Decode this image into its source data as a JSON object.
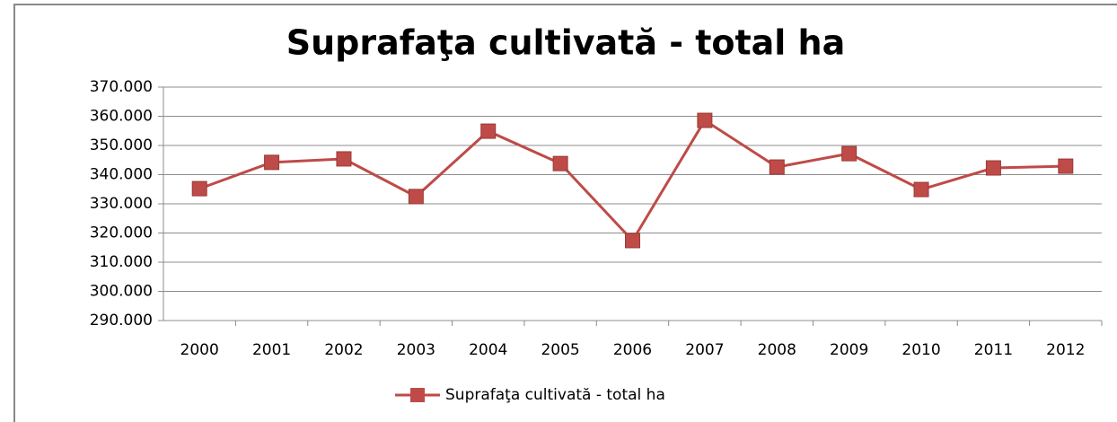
{
  "chart_data": {
    "type": "line",
    "title": "Suprafaţa cultivată - total ha",
    "categories": [
      "2000",
      "2001",
      "2002",
      "2003",
      "2004",
      "2005",
      "2006",
      "2007",
      "2008",
      "2009",
      "2010",
      "2011",
      "2012"
    ],
    "series": [
      {
        "name": "Suprafaţa cultivată - total ha",
        "color": "#be4b48",
        "values": [
          335200,
          344200,
          345400,
          332500,
          354900,
          343800,
          317400,
          358600,
          342600,
          347200,
          334900,
          342300,
          342900
        ]
      }
    ],
    "ylim": [
      290000,
      370000
    ],
    "yticks": [
      {
        "value": 290000,
        "label": "290.000"
      },
      {
        "value": 300000,
        "label": "300.000"
      },
      {
        "value": 310000,
        "label": "310.000"
      },
      {
        "value": 320000,
        "label": "320.000"
      },
      {
        "value": 330000,
        "label": "330.000"
      },
      {
        "value": 340000,
        "label": "340.000"
      },
      {
        "value": 350000,
        "label": "350.000"
      },
      {
        "value": 360000,
        "label": "360.000"
      },
      {
        "value": 370000,
        "label": "370.000"
      }
    ],
    "grid": true,
    "legend": "bottom"
  }
}
